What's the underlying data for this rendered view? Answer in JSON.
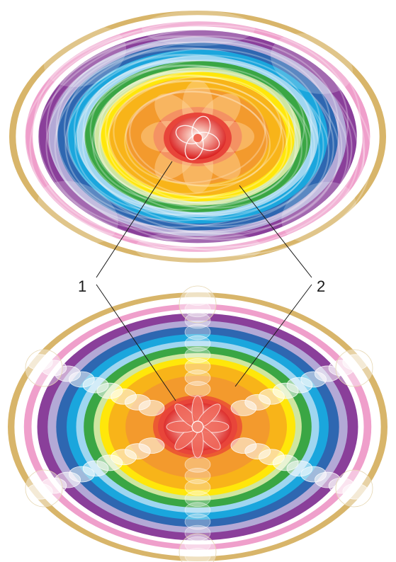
{
  "rings": [
    {
      "name": "gold-outer",
      "color": "#d8b56a"
    },
    {
      "name": "white-gap",
      "color": "#ffffff"
    },
    {
      "name": "pink",
      "color": "#ef9fcb"
    },
    {
      "name": "purple",
      "color": "#8a3f9a"
    },
    {
      "name": "lavender",
      "color": "#b3a9d6"
    },
    {
      "name": "blue",
      "color": "#2e67b1"
    },
    {
      "name": "cyan",
      "color": "#1aa6dd"
    },
    {
      "name": "light-blue",
      "color": "#9fd6f0"
    },
    {
      "name": "green",
      "color": "#3aa644"
    },
    {
      "name": "light-green",
      "color": "#cfe6a0"
    },
    {
      "name": "yellow",
      "color": "#ffe70a"
    },
    {
      "name": "amber",
      "color": "#f8b419"
    },
    {
      "name": "orange",
      "color": "#f39a2d"
    },
    {
      "name": "red-orange",
      "color": "#ec5a32"
    },
    {
      "name": "red-core",
      "color": "#e3221f"
    }
  ],
  "callouts": {
    "label_1": "1",
    "label_2": "2"
  }
}
